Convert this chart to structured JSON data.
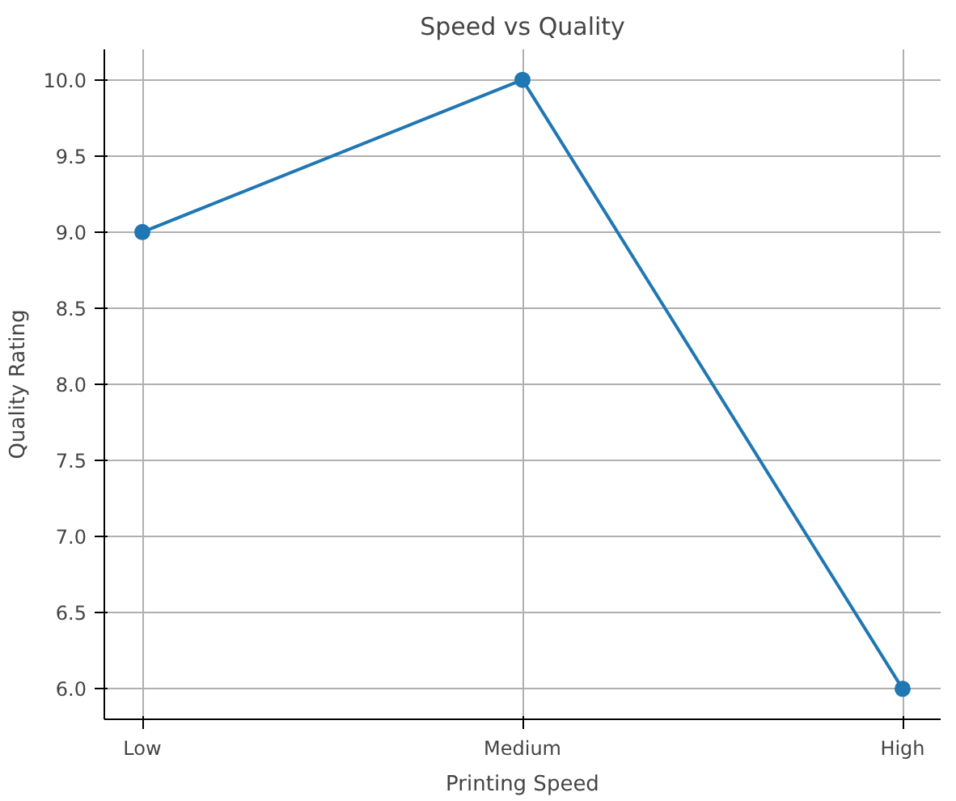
{
  "chart_data": {
    "type": "line",
    "title": "Speed vs Quality",
    "xlabel": "Printing Speed",
    "ylabel": "Quality Rating",
    "categories": [
      "Low",
      "Medium",
      "High"
    ],
    "series": [
      {
        "color": "#1f77b4",
        "values": [
          9,
          10,
          6
        ]
      }
    ],
    "ylim": [
      5.8,
      10.2
    ],
    "yticks": [
      {
        "value": 6,
        "label": "6.0"
      },
      {
        "value": 6.5,
        "label": "6.5"
      },
      {
        "value": 7,
        "label": "7.0"
      },
      {
        "value": 7.5,
        "label": "7.5"
      },
      {
        "value": 8,
        "label": "8.0"
      },
      {
        "value": 8.5,
        "label": "8.5"
      },
      {
        "value": 9,
        "label": "9.0"
      },
      {
        "value": 9.5,
        "label": "9.5"
      },
      {
        "value": 10,
        "label": "10.0"
      }
    ],
    "grid": true,
    "marker": "circle",
    "line_style": "solid"
  }
}
